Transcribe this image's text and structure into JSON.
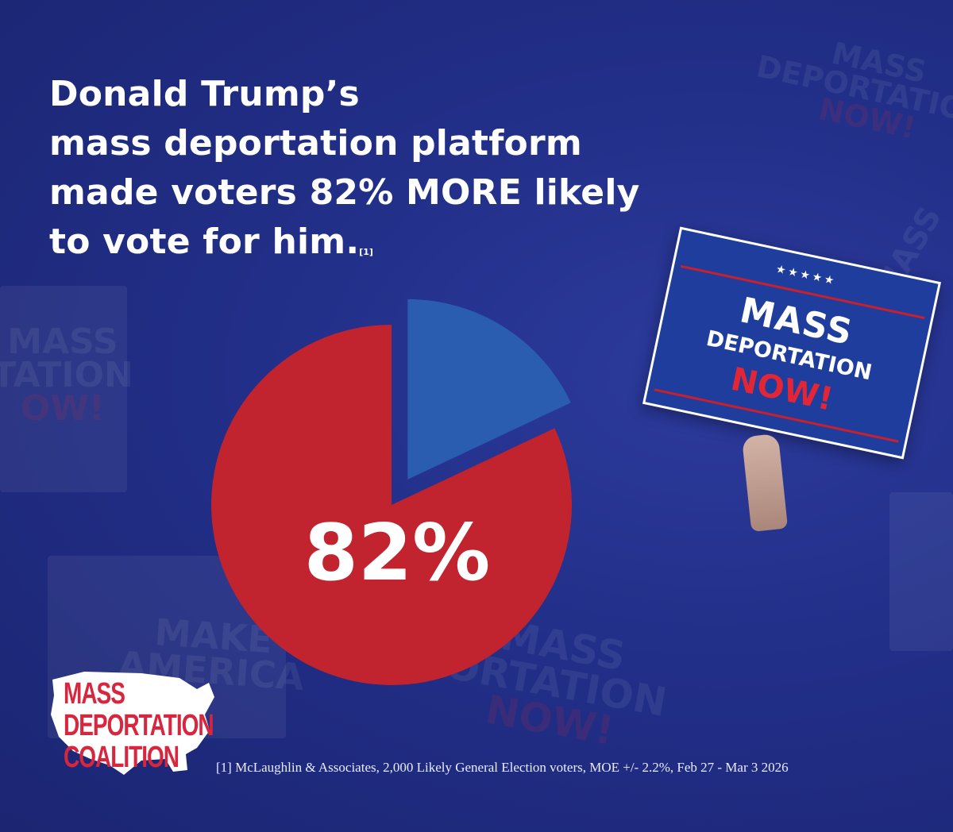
{
  "headline": {
    "line1": "Donald Trump’s",
    "line2": "mass deportation platform",
    "line3": "made voters 82% MORE likely",
    "line4": "to vote for him.",
    "footnote_marker": "[1]"
  },
  "colors": {
    "background": "#222f88",
    "more_likely": "#c1232f",
    "remainder": "#2a5db0",
    "text": "#ffffff"
  },
  "chart_data": {
    "type": "pie",
    "categories": [
      "",
      ""
    ],
    "values": [
      82,
      18
    ],
    "exploded_index": 1,
    "center_label": "82%",
    "title": "",
    "legend": "none"
  },
  "sign": {
    "stars": "★★★★★",
    "line1": "MASS",
    "line2": "DEPORTATION",
    "line3": "NOW!"
  },
  "logo": {
    "line1": "MASS",
    "line2": "DEPORTATION",
    "line3": "COALITION"
  },
  "footnote": "[1] McLaughlin & Associates, 2,000 Likely General Election voters, MOE +/- 2.2%, Feb 27 - Mar 3 2026"
}
